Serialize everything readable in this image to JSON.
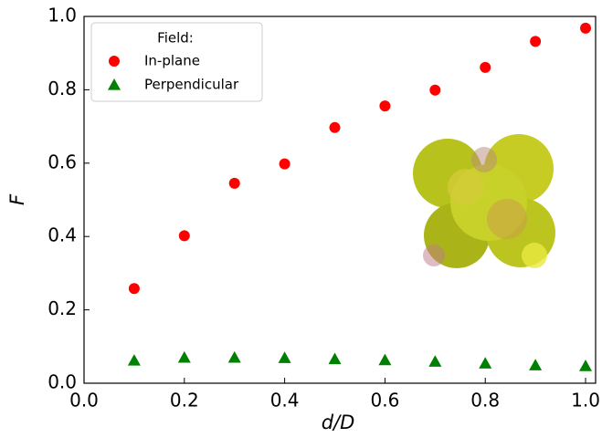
{
  "chart_data": {
    "type": "scatter",
    "x_label": "d/D",
    "y_label": "F",
    "xlim": [
      0,
      1.02
    ],
    "ylim": [
      0,
      1
    ],
    "xticks": [
      {
        "value": 0,
        "label": "0.0"
      },
      0.2,
      0.4,
      0.6,
      0.8,
      {
        "value": 1,
        "label": "1.0"
      }
    ],
    "yticks": [
      {
        "value": 0,
        "label": "0.0"
      },
      0.2,
      0.4,
      0.6,
      0.8,
      {
        "value": 1,
        "label": "1.0"
      }
    ],
    "legend_title": "Field:",
    "legend": "upper left",
    "series": [
      {
        "name": "In-plane",
        "color": "#ff0000",
        "marker": "circle",
        "x": [
          0.1,
          0.2,
          0.3,
          0.4,
          0.5,
          0.6,
          0.7,
          0.8,
          0.9,
          1.0
        ],
        "values": [
          0.258,
          0.402,
          0.545,
          0.598,
          0.697,
          0.756,
          0.799,
          0.861,
          0.932,
          0.968
        ]
      },
      {
        "name": "Perpendicular",
        "color": "#008000",
        "marker": "triangle",
        "x": [
          0.1,
          0.2,
          0.3,
          0.4,
          0.5,
          0.6,
          0.7,
          0.8,
          0.9,
          1.0
        ],
        "values": [
          0.062,
          0.07,
          0.07,
          0.069,
          0.066,
          0.063,
          0.059,
          0.054,
          0.049,
          0.047
        ]
      }
    ]
  }
}
